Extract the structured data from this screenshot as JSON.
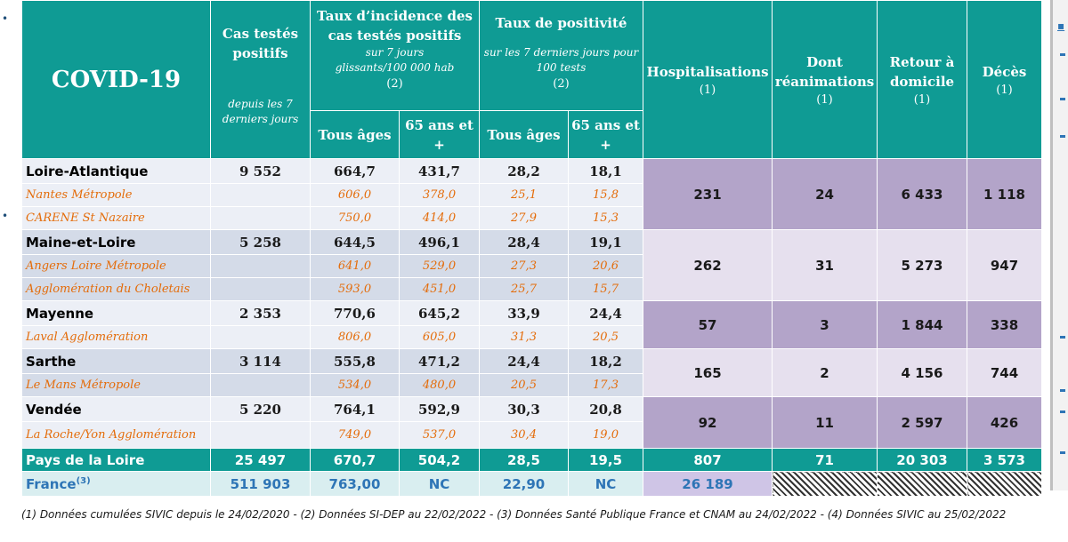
{
  "title": "COVID-19",
  "headers": {
    "cas": {
      "label": "Cas testés positifs",
      "note": "depuis les 7 derniers jours"
    },
    "incidence": {
      "label": "Taux d’incidence des cas testés positifs",
      "note": "sur 7 jours glissants/100 000 hab",
      "ref": "(2)"
    },
    "positivite": {
      "label": "Taux de positivité",
      "note": "sur les 7 derniers jours pour 100 tests",
      "ref": "(2)"
    },
    "hosp": {
      "label": "Hospitalisations",
      "ref": "(1)"
    },
    "rea": {
      "label": "Dont réanimations",
      "ref": "(1)"
    },
    "retour": {
      "label": "Retour à domicile",
      "ref": "(1)"
    },
    "deces": {
      "label": "Décès",
      "ref": "(1)"
    },
    "sub": {
      "tous": "Tous âges",
      "s65": "65 ans et +"
    }
  },
  "rows": [
    {
      "name": "Loire-Atlantique",
      "cas": "9 552",
      "inc_all": "664,7",
      "inc_65": "431,7",
      "pos_all": "28,2",
      "pos_65": "18,1",
      "hosp": "231",
      "rea": "24",
      "retour": "6 433",
      "deces": "1 118",
      "cities": [
        {
          "name": "Nantes Métropole",
          "inc_all": "606,0",
          "inc_65": "378,0",
          "pos_all": "25,1",
          "pos_65": "15,8"
        },
        {
          "name": "CARENE St Nazaire",
          "inc_all": "750,0",
          "inc_65": "414,0",
          "pos_all": "27,9",
          "pos_65": "15,3"
        }
      ]
    },
    {
      "name": "Maine-et-Loire",
      "cas": "5 258",
      "inc_all": "644,5",
      "inc_65": "496,1",
      "pos_all": "28,4",
      "pos_65": "19,1",
      "hosp": "262",
      "rea": "31",
      "retour": "5 273",
      "deces": "947",
      "cities": [
        {
          "name": "Angers Loire Métropole",
          "inc_all": "641,0",
          "inc_65": "529,0",
          "pos_all": "27,3",
          "pos_65": "20,6"
        },
        {
          "name": "Agglomération du Choletais",
          "inc_all": "593,0",
          "inc_65": "451,0",
          "pos_all": "25,7",
          "pos_65": "15,7"
        }
      ]
    },
    {
      "name": "Mayenne",
      "cas": "2 353",
      "inc_all": "770,6",
      "inc_65": "645,2",
      "pos_all": "33,9",
      "pos_65": "24,4",
      "hosp": "57",
      "rea": "3",
      "retour": "1 844",
      "deces": "338",
      "cities": [
        {
          "name": "Laval Agglomération",
          "inc_all": "806,0",
          "inc_65": "605,0",
          "pos_all": "31,3",
          "pos_65": "20,5"
        }
      ]
    },
    {
      "name": "Sarthe",
      "cas": "3 114",
      "inc_all": "555,8",
      "inc_65": "471,2",
      "pos_all": "24,4",
      "pos_65": "18,2",
      "hosp": "165",
      "rea": "2",
      "retour": "4 156",
      "deces": "744",
      "cities": [
        {
          "name": "Le Mans Métropole",
          "inc_all": "534,0",
          "inc_65": "480,0",
          "pos_all": "20,5",
          "pos_65": "17,3"
        }
      ]
    },
    {
      "name": "Vendée",
      "cas": "5 220",
      "inc_all": "764,1",
      "inc_65": "592,9",
      "pos_all": "30,3",
      "pos_65": "20,8",
      "hosp": "92",
      "rea": "11",
      "retour": "2 597",
      "deces": "426",
      "cities": [
        {
          "name": "La Roche/Yon  Agglomération",
          "inc_all": "749,0",
          "inc_65": "537,0",
          "pos_all": "30,4",
          "pos_65": "19,0"
        }
      ]
    }
  ],
  "total": {
    "name": "Pays de la Loire",
    "cas": "25 497",
    "inc_all": "670,7",
    "inc_65": "504,2",
    "pos_all": "28,5",
    "pos_65": "19,5",
    "hosp": "807",
    "rea": "71",
    "retour": "20 303",
    "deces": "3 573"
  },
  "france": {
    "name": "France",
    "sup": "(3)",
    "cas": "511 903",
    "inc_all": "763,00",
    "inc_65": "NC",
    "pos_all": "22,90",
    "pos_65": "NC",
    "hosp": "26 189"
  },
  "footnote": "(1) Données cumulées SIVIC depuis le 24/02/2020 - (2) Données SI-DEP  au 22/02/2022 - (3) Données Santé Publique France et CNAM au 24/02/2022 - (4) Données SIVIC au 25/02/2022",
  "colors": {
    "teal": "#0f9b94",
    "purple": "#b3a4c9",
    "orange": "#e46c0a",
    "france_blue": "#2e75b6"
  }
}
